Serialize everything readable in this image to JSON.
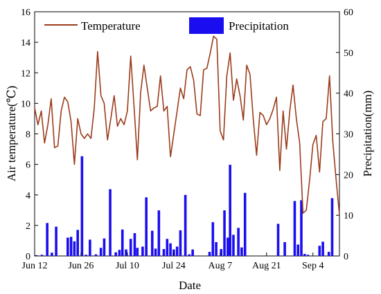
{
  "chart_data": {
    "type": "bar+line",
    "title": "",
    "xlabel": "Date",
    "ylabel_left": "Air temperature(℃)",
    "ylabel_right": "Precipitation(mm)",
    "x_ticks": [
      "Jun 12",
      "Jun 26",
      "Jul 10",
      "Jul 24",
      "Aug 7",
      "Aug 21",
      "Sep 4"
    ],
    "x_tick_days": [
      0,
      14,
      28,
      42,
      56,
      70,
      84
    ],
    "x_range_days": [
      0,
      92
    ],
    "y_left_ticks": [
      "0",
      "2",
      "4",
      "6",
      "8",
      "10",
      "12",
      "14",
      "16"
    ],
    "y_left_range": [
      0,
      16
    ],
    "y_right_ticks": [
      "0",
      "10",
      "20",
      "30",
      "40",
      "50",
      "60"
    ],
    "y_right_range": [
      0,
      60
    ],
    "legend": {
      "position": "top",
      "temperature_label": "Temperature",
      "precipitation_label": "Precipitation"
    },
    "colors": {
      "temperature": "#9a3b1a",
      "precipitation": "#1a0ef0",
      "axis": "#000000"
    },
    "temperature": [
      9.7,
      8.6,
      9.5,
      7.4,
      8.6,
      10.3,
      7.1,
      7.2,
      9.5,
      10.4,
      10.1,
      8.8,
      6.0,
      9.0,
      8.0,
      7.7,
      8.0,
      7.7,
      9.7,
      13.4,
      10.5,
      10.0,
      7.6,
      9.0,
      10.5,
      8.5,
      9.0,
      8.6,
      9.5,
      13.1,
      9.8,
      6.3,
      10.7,
      12.5,
      11.0,
      9.5,
      9.7,
      9.8,
      11.8,
      9.5,
      9.8,
      6.5,
      8.0,
      9.5,
      11.0,
      10.3,
      12.2,
      12.4,
      11.5,
      9.3,
      9.2,
      12.2,
      12.3,
      13.3,
      14.4,
      14.2,
      8.2,
      7.6,
      11.8,
      13.3,
      10.2,
      11.6,
      10.5,
      8.9,
      12.5,
      11.9,
      8.9,
      6.6,
      9.4,
      9.2,
      8.6,
      9.0,
      9.6,
      10.4,
      5.6,
      9.5,
      7.0,
      9.5,
      11.2,
      9.0,
      7.4,
      2.8,
      3.0,
      5.0,
      7.3,
      7.9,
      5.5,
      8.8,
      9.0,
      11.8,
      7.5,
      5.0,
      2.7
    ],
    "precipitation_bars": [
      {
        "day": 0.5,
        "value": 0.2
      },
      {
        "day": 2.2,
        "value": 0.3
      },
      {
        "day": 3.8,
        "value": 8.1
      },
      {
        "day": 5.2,
        "value": 0.8
      },
      {
        "day": 6.5,
        "value": 7.2
      },
      {
        "day": 10.0,
        "value": 4.5
      },
      {
        "day": 11.0,
        "value": 4.7
      },
      {
        "day": 12.0,
        "value": 3.6
      },
      {
        "day": 13.0,
        "value": 6.4
      },
      {
        "day": 14.3,
        "value": 24.5
      },
      {
        "day": 15.5,
        "value": 0.3
      },
      {
        "day": 16.7,
        "value": 4.0
      },
      {
        "day": 18.5,
        "value": 0.4
      },
      {
        "day": 20.0,
        "value": 2.0
      },
      {
        "day": 21.0,
        "value": 4.3
      },
      {
        "day": 22.8,
        "value": 16.4
      },
      {
        "day": 24.5,
        "value": 0.9
      },
      {
        "day": 25.6,
        "value": 1.5
      },
      {
        "day": 26.5,
        "value": 6.5
      },
      {
        "day": 27.6,
        "value": 1.6
      },
      {
        "day": 29.0,
        "value": 4.2
      },
      {
        "day": 30.2,
        "value": 5.6
      },
      {
        "day": 31.0,
        "value": 2.0
      },
      {
        "day": 32.6,
        "value": 2.3
      },
      {
        "day": 33.7,
        "value": 14.4
      },
      {
        "day": 35.5,
        "value": 6.2
      },
      {
        "day": 36.5,
        "value": 1.8
      },
      {
        "day": 37.5,
        "value": 11.2
      },
      {
        "day": 39.0,
        "value": 1.7
      },
      {
        "day": 40.0,
        "value": 4.2
      },
      {
        "day": 41.0,
        "value": 3.1
      },
      {
        "day": 42.0,
        "value": 1.6
      },
      {
        "day": 43.0,
        "value": 2.3
      },
      {
        "day": 44.0,
        "value": 6.3
      },
      {
        "day": 45.5,
        "value": 15.0
      },
      {
        "day": 46.7,
        "value": 0.4
      },
      {
        "day": 47.7,
        "value": 1.6
      },
      {
        "day": 52.8,
        "value": 1.0
      },
      {
        "day": 53.8,
        "value": 8.3
      },
      {
        "day": 54.8,
        "value": 3.4
      },
      {
        "day": 56.3,
        "value": 1.7
      },
      {
        "day": 57.3,
        "value": 11.2
      },
      {
        "day": 58.3,
        "value": 4.5
      },
      {
        "day": 59.0,
        "value": 22.4
      },
      {
        "day": 60.0,
        "value": 5.2
      },
      {
        "day": 61.5,
        "value": 6.9
      },
      {
        "day": 62.5,
        "value": 2.1
      },
      {
        "day": 63.5,
        "value": 15.5
      },
      {
        "day": 73.5,
        "value": 7.9
      },
      {
        "day": 75.5,
        "value": 3.4
      },
      {
        "day": 78.5,
        "value": 13.5
      },
      {
        "day": 79.5,
        "value": 2.8
      },
      {
        "day": 80.5,
        "value": 13.7
      },
      {
        "day": 81.5,
        "value": 0.5
      },
      {
        "day": 82.5,
        "value": 0.3
      },
      {
        "day": 86.0,
        "value": 2.5
      },
      {
        "day": 87.0,
        "value": 3.5
      },
      {
        "day": 88.8,
        "value": 1.0
      },
      {
        "day": 89.8,
        "value": 14.2
      }
    ]
  }
}
